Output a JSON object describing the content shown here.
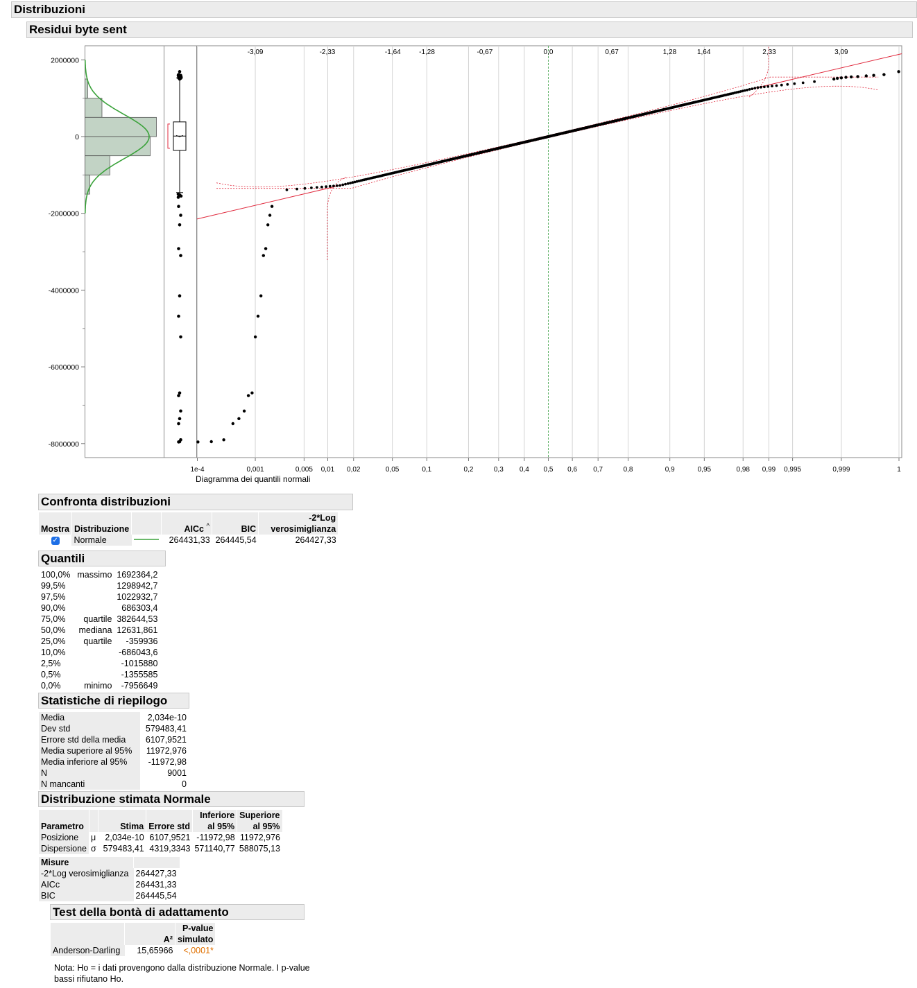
{
  "headers": {
    "distribuzioni": "Distribuzioni",
    "residui": "Residui byte sent",
    "confronta": "Confronta distribuzioni",
    "quantili": "Quantili",
    "statistiche": "Statistiche di riepilogo",
    "distrib_stimata": "Distribuzione stimata Normale",
    "test": "Test della bontà di adattamento"
  },
  "chart_data": {
    "type": "scatter",
    "title": "",
    "xlabel": "Diagramma dei quantili normali",
    "y_ticks": [
      "2000000",
      "0",
      "-2000000",
      "-4000000",
      "-6000000",
      "-8000000"
    ],
    "y_tick_values": [
      2000000,
      0,
      -2000000,
      -4000000,
      -6000000,
      -8000000
    ],
    "ylim": [
      -8400000,
      2000000
    ],
    "top_axis_ticks": [
      "-3,09",
      "-2,33",
      "-1,64",
      "-1,28",
      "-0,67",
      "0,0",
      "0,67",
      "1,28",
      "1,64",
      "2,33",
      "3,09"
    ],
    "top_axis_values": [
      -3.09,
      -2.33,
      -1.64,
      -1.28,
      -0.67,
      0.0,
      0.67,
      1.28,
      1.64,
      2.33,
      3.09
    ],
    "bottom_axis_ticks": [
      "1e-4",
      "0,001",
      "0,005",
      "0,01",
      "0,02",
      "0,05",
      "0,1",
      "0,2",
      "0,3",
      "0,4",
      "0,5",
      "0,6",
      "0,7",
      "0,8",
      "0,9",
      "0,95",
      "0,98",
      "0,99",
      "0,995",
      "0,999",
      "1"
    ],
    "bottom_axis_values": [
      0.0001,
      0.001,
      0.005,
      0.01,
      0.02,
      0.05,
      0.1,
      0.2,
      0.3,
      0.4,
      0.5,
      0.6,
      0.7,
      0.8,
      0.9,
      0.95,
      0.98,
      0.99,
      0.995,
      0.999,
      1
    ],
    "histogram_bins": [
      {
        "lo": 1000000,
        "hi": 1500000,
        "count": 130
      },
      {
        "lo": 500000,
        "hi": 1000000,
        "count": 820
      },
      {
        "lo": 0,
        "hi": 500000,
        "count": 3450
      },
      {
        "lo": -500000,
        "hi": 0,
        "count": 3150
      },
      {
        "lo": -1000000,
        "hi": -500000,
        "count": 1200
      },
      {
        "lo": -1500000,
        "hi": -1000000,
        "count": 230
      }
    ],
    "box_plot": {
      "q1": -359936,
      "median": 12631.861,
      "q3": 382644.53,
      "whisker_low": -1460000,
      "whisker_high": 1530000
    },
    "fit_line": {
      "mean": 2.034e-10,
      "sd": 579483.41
    },
    "outliers_low": [
      {
        "p": 0.00011,
        "y": -7956649
      },
      {
        "p": 0.00019,
        "y": -7950000
      },
      {
        "p": 0.00031,
        "y": -7900000
      },
      {
        "p": 0.00044,
        "y": -7480000
      },
      {
        "p": 0.00055,
        "y": -7350000
      },
      {
        "p": 0.00067,
        "y": -7150000
      },
      {
        "p": 0.00078,
        "y": -6750000
      },
      {
        "p": 0.00089,
        "y": -6680000
      },
      {
        "p": 0.001,
        "y": -5220000
      },
      {
        "p": 0.0011,
        "y": -4680000
      },
      {
        "p": 0.00122,
        "y": -4150000
      },
      {
        "p": 0.00133,
        "y": -3100000
      },
      {
        "p": 0.00144,
        "y": -2920000
      },
      {
        "p": 0.00155,
        "y": -2300000
      },
      {
        "p": 0.00166,
        "y": -2050000
      },
      {
        "p": 0.00178,
        "y": -1820000
      }
    ],
    "outliers_high": [
      {
        "p": 0.9987,
        "y": 1500000
      },
      {
        "p": 0.99885,
        "y": 1520000
      },
      {
        "p": 0.999,
        "y": 1530000
      },
      {
        "p": 0.99915,
        "y": 1545000
      },
      {
        "p": 0.9993,
        "y": 1555000
      },
      {
        "p": 0.99945,
        "y": 1565000
      },
      {
        "p": 0.9996,
        "y": 1580000
      },
      {
        "p": 0.9997,
        "y": 1595000
      },
      {
        "p": 0.9998,
        "y": 1615000
      },
      {
        "p": 0.99989,
        "y": 1692364.2
      }
    ]
  },
  "confronta": {
    "col_mostra": "Mostra",
    "col_distribuzione": "Distribuzione",
    "col_aicc": "AICc",
    "col_bic": "BIC",
    "col_loglik_1": "-2*Log",
    "col_loglik_2": "verosimiglianza",
    "row": {
      "distribuzione": "Normale",
      "aicc": "264431,33",
      "bic": "264445,54",
      "loglik": "264427,33",
      "line_color": "#3aa23a"
    }
  },
  "quantili": [
    {
      "pct": "100,0%",
      "label": "massimo",
      "value": "1692364,2"
    },
    {
      "pct": "99,5%",
      "label": "",
      "value": "1298942,7"
    },
    {
      "pct": "97,5%",
      "label": "",
      "value": "1022932,7"
    },
    {
      "pct": "90,0%",
      "label": "",
      "value": "686303,4"
    },
    {
      "pct": "75,0%",
      "label": "quartile",
      "value": "382644,53"
    },
    {
      "pct": "50,0%",
      "label": "mediana",
      "value": "12631,861"
    },
    {
      "pct": "25,0%",
      "label": "quartile",
      "value": "-359936"
    },
    {
      "pct": "10,0%",
      "label": "",
      "value": "-686043,6"
    },
    {
      "pct": "2,5%",
      "label": "",
      "value": "-1015880"
    },
    {
      "pct": "0,5%",
      "label": "",
      "value": "-1355585"
    },
    {
      "pct": "0,0%",
      "label": "minimo",
      "value": "-7956649"
    }
  ],
  "statistiche": [
    {
      "label": "Media",
      "value": "2,034e-10"
    },
    {
      "label": "Dev std",
      "value": "579483,41"
    },
    {
      "label": "Errore std della media",
      "value": "6107,9521"
    },
    {
      "label": "Media superiore al 95%",
      "value": "11972,976"
    },
    {
      "label": "Media inferiore al 95%",
      "value": "-11972,98"
    },
    {
      "label": "N",
      "value": "9001"
    },
    {
      "label": "N mancanti",
      "value": "0"
    }
  ],
  "distrib_stimata": {
    "col_parametro": "Parametro",
    "col_stima": "Stima",
    "col_errore": "Errore std",
    "col_inf_1": "Inferiore",
    "col_inf_2": "al 95%",
    "col_sup_1": "Superiore",
    "col_sup_2": "al 95%",
    "rows": [
      {
        "name": "Posizione",
        "sym": "μ",
        "stima": "2,034e-10",
        "errore": "6107,9521",
        "inf": "-11972,98",
        "sup": "11972,976"
      },
      {
        "name": "Dispersione",
        "sym": "σ",
        "stima": "579483,41",
        "errore": "4319,3343",
        "inf": "571140,77",
        "sup": "588075,13"
      }
    ],
    "misure_title": "Misure",
    "misure": [
      {
        "label": "-2*Log verosimiglianza",
        "value": "264427,33"
      },
      {
        "label": "AICc",
        "value": "264431,33"
      },
      {
        "label": "BIC",
        "value": "264445,54"
      }
    ]
  },
  "test": {
    "col_a2": "A²",
    "col_pv_1": "P-value",
    "col_pv_2": "simulato",
    "row": {
      "name": "Anderson-Darling",
      "a2": "15,65966",
      "pvalue": "<,0001*"
    },
    "nota": "Nota: Ho = i dati provengono dalla distribuzione Normale. I p-value bassi rifiutano Ho."
  },
  "colors": {
    "header_bg": "#ececec",
    "hist_fill": "#c2d3c5",
    "fit_curve": "#3aa23a",
    "ref_line": "#e0283c",
    "pvalue": "#e07000"
  }
}
